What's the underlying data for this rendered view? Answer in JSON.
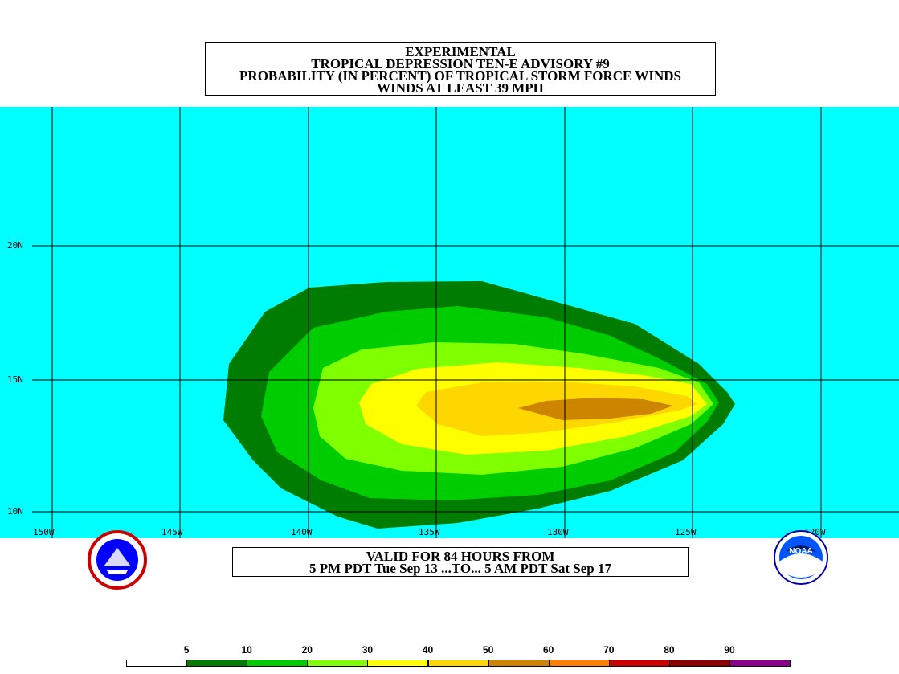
{
  "title": {
    "line1": "EXPERIMENTAL",
    "line2": "TROPICAL DEPRESSION TEN-E ADVISORY #9",
    "line3": "PROBABILITY (IN PERCENT) OF TROPICAL STORM FORCE WINDS",
    "line4": "WINDS AT LEAST 39 MPH"
  },
  "map": {
    "ocean_color": "#00ffff",
    "lon_labels": [
      "150W",
      "145W",
      "140W",
      "135W",
      "130W",
      "125W",
      "120W"
    ],
    "lat_labels": [
      "20N",
      "15N",
      "10N"
    ]
  },
  "valid": {
    "line1": "VALID FOR 84 HOURS FROM",
    "line2": "5 PM PDT Tue Sep 13 ...TO... 5 AM PDT Sat Sep 17"
  },
  "logos": {
    "left": "national-weather-service-logo",
    "right": "noaa-logo",
    "right_text": "NOAA"
  },
  "legend": {
    "labels": [
      "5",
      "10",
      "20",
      "30",
      "40",
      "50",
      "60",
      "70",
      "80",
      "90"
    ],
    "colors": [
      "#ffffff",
      "#007d00",
      "#00cd00",
      "#80ff00",
      "#ffff00",
      "#ffd700",
      "#cd8500",
      "#ff7f00",
      "#cd0000",
      "#8b0000",
      "#8b008b"
    ]
  }
}
